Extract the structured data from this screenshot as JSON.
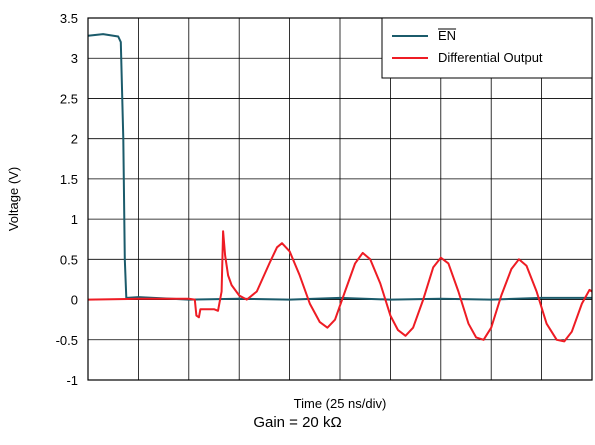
{
  "caption": "Gain = 20 kΩ",
  "chart_data": {
    "type": "line",
    "xlabel": "Time (25 ns/div)",
    "ylabel": "Voltage (V)",
    "ylim": [
      -1,
      3.5
    ],
    "yticks": [
      "3.5",
      "3",
      "2.5",
      "2",
      "1.5",
      "1",
      "0.5",
      "0",
      "-0.5",
      "-1"
    ],
    "x_divisions": 10,
    "grid": true,
    "legend_position": "top-right",
    "colors": {
      "en": "#1b5b6b",
      "diff": "#ee1c24"
    },
    "series": [
      {
        "key": "en",
        "name": "EN",
        "name_overline": true,
        "x_unit": "div",
        "points": [
          [
            0,
            3.28
          ],
          [
            0.3,
            3.3
          ],
          [
            0.6,
            3.27
          ],
          [
            0.65,
            3.2
          ],
          [
            0.7,
            2.0
          ],
          [
            0.73,
            0.5
          ],
          [
            0.76,
            0.02
          ],
          [
            1.0,
            0.03
          ],
          [
            2.0,
            0.0
          ],
          [
            3.0,
            0.01
          ],
          [
            4.0,
            0.0
          ],
          [
            5.0,
            0.02
          ],
          [
            6.0,
            0.0
          ],
          [
            7.0,
            0.01
          ],
          [
            8.0,
            0.0
          ],
          [
            9.0,
            0.02
          ],
          [
            10.0,
            0.02
          ]
        ]
      },
      {
        "key": "diff",
        "name": "Differential Output",
        "x_unit": "div",
        "points": [
          [
            0,
            0.0
          ],
          [
            1.0,
            0.01
          ],
          [
            1.5,
            0.01
          ],
          [
            2.0,
            0.01
          ],
          [
            2.12,
            0.0
          ],
          [
            2.15,
            -0.2
          ],
          [
            2.2,
            -0.22
          ],
          [
            2.23,
            -0.12
          ],
          [
            2.5,
            -0.12
          ],
          [
            2.58,
            -0.14
          ],
          [
            2.65,
            0.1
          ],
          [
            2.68,
            0.85
          ],
          [
            2.72,
            0.55
          ],
          [
            2.78,
            0.3
          ],
          [
            2.85,
            0.18
          ],
          [
            3.0,
            0.05
          ],
          [
            3.15,
            0.0
          ],
          [
            3.35,
            0.1
          ],
          [
            3.6,
            0.45
          ],
          [
            3.75,
            0.65
          ],
          [
            3.85,
            0.7
          ],
          [
            4.0,
            0.6
          ],
          [
            4.2,
            0.3
          ],
          [
            4.4,
            -0.05
          ],
          [
            4.6,
            -0.28
          ],
          [
            4.75,
            -0.35
          ],
          [
            4.9,
            -0.25
          ],
          [
            5.1,
            0.1
          ],
          [
            5.3,
            0.45
          ],
          [
            5.45,
            0.58
          ],
          [
            5.6,
            0.5
          ],
          [
            5.8,
            0.2
          ],
          [
            6.0,
            -0.2
          ],
          [
            6.15,
            -0.38
          ],
          [
            6.3,
            -0.45
          ],
          [
            6.45,
            -0.35
          ],
          [
            6.65,
            0.0
          ],
          [
            6.85,
            0.4
          ],
          [
            7.0,
            0.52
          ],
          [
            7.15,
            0.45
          ],
          [
            7.35,
            0.1
          ],
          [
            7.55,
            -0.3
          ],
          [
            7.7,
            -0.47
          ],
          [
            7.85,
            -0.5
          ],
          [
            8.0,
            -0.35
          ],
          [
            8.2,
            0.05
          ],
          [
            8.4,
            0.38
          ],
          [
            8.55,
            0.5
          ],
          [
            8.7,
            0.42
          ],
          [
            8.9,
            0.1
          ],
          [
            9.1,
            -0.3
          ],
          [
            9.3,
            -0.5
          ],
          [
            9.45,
            -0.52
          ],
          [
            9.6,
            -0.4
          ],
          [
            9.8,
            -0.05
          ],
          [
            9.95,
            0.12
          ],
          [
            10.0,
            0.1
          ]
        ]
      }
    ]
  }
}
